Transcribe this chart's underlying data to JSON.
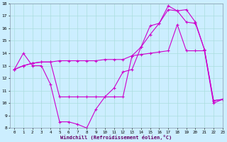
{
  "xlabel": "Windchill (Refroidissement éolien,°C)",
  "bg_color": "#cceeff",
  "line_color": "#cc00cc",
  "grid_color": "#aadddd",
  "line1_x": [
    0,
    1,
    2,
    3,
    4,
    5,
    6,
    7,
    8,
    9,
    10,
    11,
    12,
    13,
    14,
    15,
    16,
    17,
    18,
    19,
    20,
    21,
    22,
    23
  ],
  "line1_y": [
    12.7,
    14.0,
    13.0,
    13.0,
    11.5,
    8.5,
    8.5,
    8.3,
    8.0,
    9.5,
    10.5,
    11.2,
    12.5,
    12.7,
    14.5,
    16.2,
    16.4,
    17.8,
    17.4,
    17.5,
    16.5,
    14.3,
    10.2,
    10.3
  ],
  "line2_x": [
    0,
    1,
    2,
    3,
    4,
    5,
    6,
    7,
    8,
    9,
    10,
    11,
    12,
    13,
    14,
    15,
    16,
    17,
    18,
    19,
    20,
    21,
    22,
    23
  ],
  "line2_y": [
    12.7,
    13.0,
    13.2,
    13.3,
    13.3,
    13.4,
    13.4,
    13.4,
    13.4,
    13.4,
    13.5,
    13.5,
    13.5,
    13.8,
    13.9,
    14.0,
    14.1,
    14.2,
    16.3,
    14.2,
    14.2,
    14.2,
    10.0,
    10.3
  ],
  "line3_x": [
    0,
    1,
    2,
    3,
    4,
    5,
    6,
    7,
    8,
    9,
    10,
    11,
    12,
    13,
    14,
    15,
    16,
    17,
    18,
    19,
    20,
    21,
    22,
    23
  ],
  "line3_y": [
    12.7,
    13.0,
    13.2,
    13.3,
    13.3,
    10.5,
    10.5,
    10.5,
    10.5,
    10.5,
    10.5,
    10.5,
    10.5,
    13.8,
    14.5,
    15.5,
    16.4,
    17.5,
    17.4,
    16.5,
    16.4,
    14.3,
    10.2,
    10.3
  ],
  "ylim": [
    8,
    18
  ],
  "xlim": [
    -0.5,
    23
  ],
  "yticks": [
    8,
    9,
    10,
    11,
    12,
    13,
    14,
    15,
    16,
    17,
    18
  ],
  "xticks": [
    0,
    1,
    2,
    3,
    4,
    5,
    6,
    7,
    8,
    9,
    10,
    11,
    12,
    13,
    14,
    15,
    16,
    17,
    18,
    19,
    20,
    21,
    22,
    23
  ]
}
